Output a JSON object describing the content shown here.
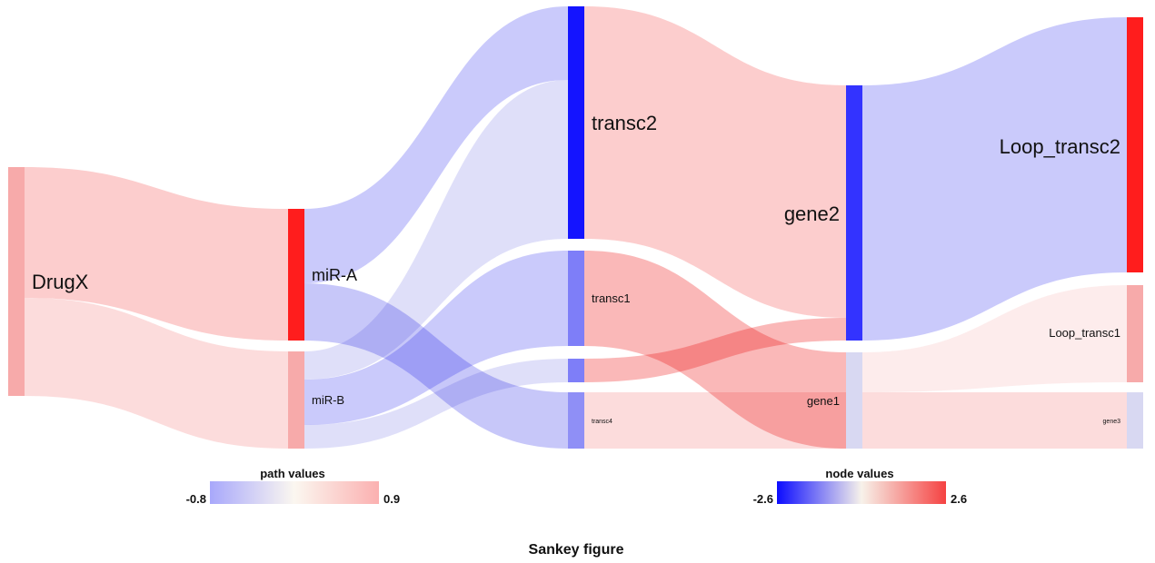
{
  "figure": {
    "caption": "Sankey figure"
  },
  "nodes": [
    {
      "id": "DrugX",
      "label": "DrugX",
      "color": "#f7aaaa",
      "column": 0
    },
    {
      "id": "miR-A",
      "label": "miR-A",
      "color": "#ff1d1d",
      "column": 1
    },
    {
      "id": "miR-B",
      "label": "miR-B",
      "color": "#f7aaaa",
      "column": 1
    },
    {
      "id": "transc2",
      "label": "transc2",
      "color": "#1414ff",
      "column": 2
    },
    {
      "id": "transc1",
      "label": "transc1",
      "color": "#7e7ef8",
      "column": 2
    },
    {
      "id": "transc3",
      "label": "",
      "color": "#7e7ef8",
      "column": 2
    },
    {
      "id": "transc4",
      "label": "transc4",
      "color": "#8f8ff6",
      "column": 2
    },
    {
      "id": "gene2",
      "label": "gene2",
      "color": "#3333ff",
      "column": 3
    },
    {
      "id": "gene1",
      "label": "gene1",
      "color": "#d8d8f2",
      "column": 3
    },
    {
      "id": "Loop_transc2",
      "label": "Loop_transc2",
      "color": "#ff1d1d",
      "column": 4
    },
    {
      "id": "Loop_transc1",
      "label": "Loop_transc1",
      "color": "#f7aaaa",
      "column": 4
    },
    {
      "id": "gene3",
      "label": "gene3",
      "color": "#d8d8f2",
      "column": 4
    }
  ],
  "links": [
    {
      "source": "DrugX",
      "target": "miR-A",
      "color": "#fcc9c9"
    },
    {
      "source": "DrugX",
      "target": "miR-B",
      "color": "#fcd9d9"
    },
    {
      "source": "miR-A",
      "target": "transc2",
      "color": "#c6c6fb"
    },
    {
      "source": "miR-A",
      "target": "transc4",
      "color": "#c2c2f8"
    },
    {
      "source": "miR-B",
      "target": "transc2",
      "color": "#dcdcf8"
    },
    {
      "source": "miR-B",
      "target": "transc1",
      "color": "#c6c6fb"
    },
    {
      "source": "miR-B",
      "target": "transc3",
      "color": "#dcdcf8"
    },
    {
      "source": "transc2",
      "target": "gene2",
      "color": "#fcc9c9"
    },
    {
      "source": "transc1",
      "target": "gene1",
      "color": "#fab2b2"
    },
    {
      "source": "transc3",
      "target": "gene2",
      "color": "#fab2b2"
    },
    {
      "source": "transc4",
      "target": "gene1",
      "color": "#fcd9d9"
    },
    {
      "source": "gene2",
      "target": "Loop_transc2",
      "color": "#c6c6fb"
    },
    {
      "source": "gene1",
      "target": "Loop_transc1",
      "color": "#fdeaea"
    },
    {
      "source": "gene1",
      "target": "gene3",
      "color": "#fcd9d9"
    }
  ],
  "legend_path": {
    "title": "path values",
    "min_label": "-0.8",
    "max_label": "0.9",
    "colors": [
      "#a8a8fb",
      "#fbf7f0",
      "#fbb0b0"
    ]
  },
  "legend_node": {
    "title": "node values",
    "min_label": "-2.6",
    "max_label": "2.6",
    "colors": [
      "#0c0cff",
      "#f7f2ea",
      "#f54242"
    ]
  }
}
